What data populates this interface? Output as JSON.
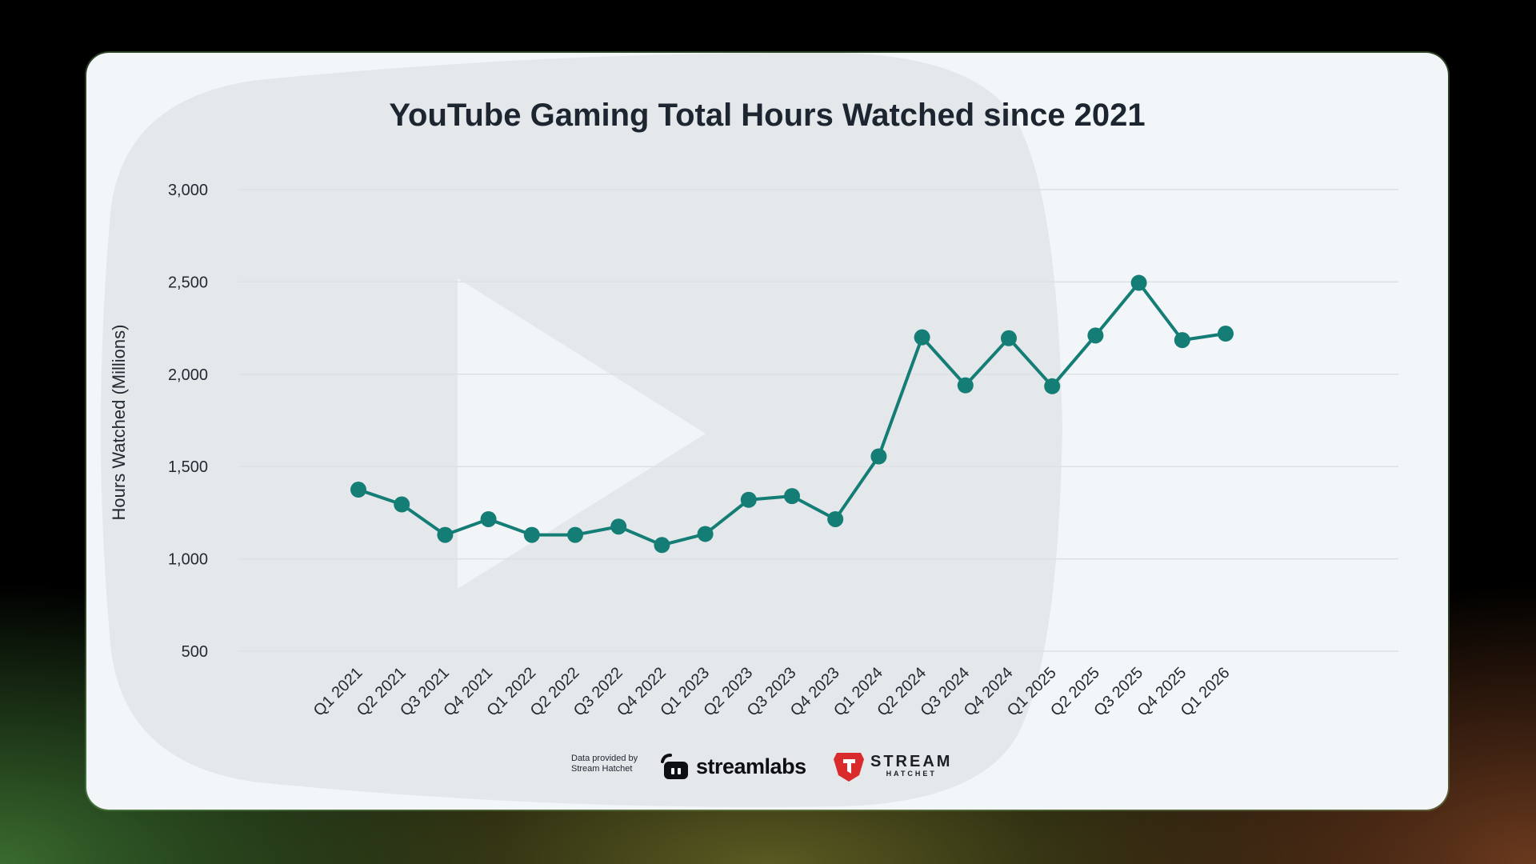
{
  "chart_data": {
    "type": "line",
    "title": "YouTube Gaming Total Hours Watched since 2021",
    "xlabel": "",
    "ylabel": "Hours Watched (Millions)",
    "ylim": [
      500,
      3000
    ],
    "yticks": [
      "3,000",
      "2,500",
      "2,000",
      "1,500",
      "1,000",
      "500"
    ],
    "ytick_values": [
      3000,
      2500,
      2000,
      1500,
      1000,
      500
    ],
    "grid": true,
    "categories": [
      "Q1 2021",
      "Q2 2021",
      "Q3 2021",
      "Q4 2021",
      "Q1 2022",
      "Q2 2022",
      "Q3 2022",
      "Q4 2022",
      "Q1 2023",
      "Q2 2023",
      "Q3 2023",
      "Q4 2023",
      "Q1 2024",
      "Q2 2024",
      "Q3 2024",
      "Q4 2024",
      "Q1 2025",
      "Q2 2025",
      "Q3 2025",
      "Q4 2025",
      "Q1 2026"
    ],
    "values": [
      1375,
      1295,
      1130,
      1215,
      1130,
      1130,
      1175,
      1075,
      1135,
      1320,
      1340,
      1215,
      1555,
      2200,
      1940,
      2195,
      1935,
      2210,
      2495,
      2185,
      2220
    ],
    "line_color": "#147d76"
  },
  "footer": {
    "credit_line1": "Data provided by",
    "credit_line2": "Stream Hatchet",
    "streamlabs_logo": "streamlabs",
    "hatchet_logo_top": "STREAM",
    "hatchet_logo_bottom": "HATCHET"
  },
  "colors": {
    "card": "#f3f6f8",
    "title": "#1c2530",
    "grid": "#dde1e5",
    "hatchet_red": "#d92b2b"
  }
}
